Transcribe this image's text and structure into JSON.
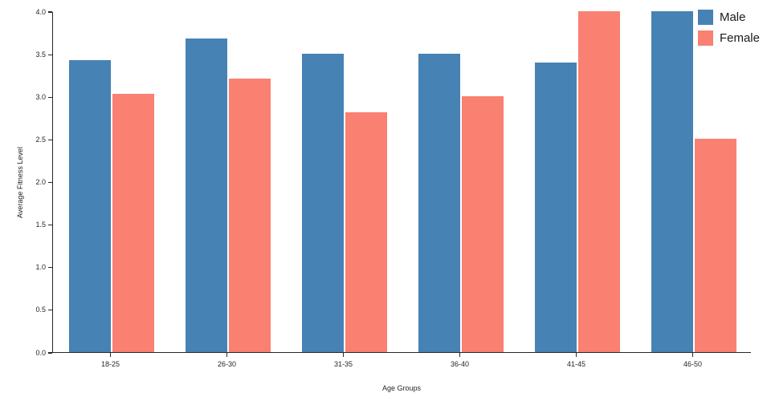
{
  "chart_data": {
    "type": "bar",
    "title": "",
    "xlabel": "Age Groups",
    "ylabel": "Average Fitness Level",
    "categories": [
      "18-25",
      "26-30",
      "31-35",
      "36-40",
      "41-45",
      "46-50"
    ],
    "series": [
      {
        "name": "Male",
        "color": "#4682B4",
        "values": [
          3.43,
          3.68,
          3.5,
          3.5,
          3.4,
          4.0
        ]
      },
      {
        "name": "Female",
        "color": "#FA8072",
        "values": [
          3.03,
          3.21,
          2.81,
          3.0,
          4.0,
          2.5
        ]
      }
    ],
    "ylim": [
      0,
      4.0
    ],
    "yticks": [
      "0.0",
      "0.5",
      "1.0",
      "1.5",
      "2.0",
      "2.5",
      "3.0",
      "3.5",
      "4.0"
    ],
    "grid": false,
    "legend_position": "top-right",
    "background": "#ffffff",
    "axis_color": "#262626"
  }
}
